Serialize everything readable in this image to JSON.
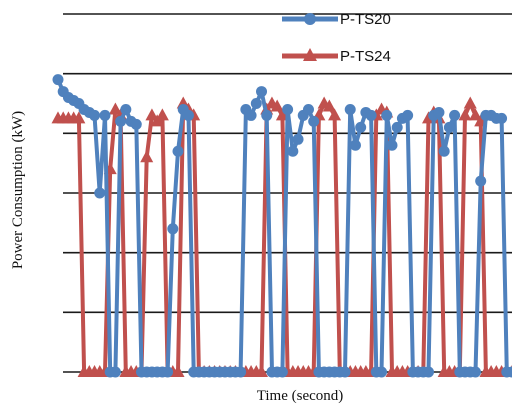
{
  "chart_data": {
    "type": "line",
    "title": "",
    "xlabel": "Time   (second)",
    "ylabel": "Power Consumption  (kW)",
    "ylim": [
      0,
      6
    ],
    "yticks": [
      0,
      1,
      2,
      3,
      4,
      5,
      6
    ],
    "xlim": [
      0,
      87
    ],
    "grid": "horizontal",
    "legend_position": "top-right",
    "series": [
      {
        "name": "P-TS20",
        "color": "#4f81bd",
        "marker": "circle",
        "x": [
          0,
          1,
          2,
          3,
          4,
          5,
          6,
          7,
          8,
          9,
          10,
          11,
          12,
          13,
          14,
          15,
          16,
          17,
          18,
          19,
          20,
          21,
          22,
          23,
          24,
          25,
          26,
          27,
          28,
          29,
          30,
          31,
          32,
          33,
          34,
          35,
          36,
          37,
          38,
          39,
          40,
          41,
          42,
          43,
          44,
          45,
          46,
          47,
          48,
          49,
          50,
          51,
          52,
          53,
          54,
          55,
          56,
          57,
          58,
          59,
          60,
          61,
          62,
          63,
          64,
          65,
          66,
          67,
          68,
          69,
          70,
          71,
          72,
          73,
          74,
          75,
          76,
          77,
          78,
          79,
          80,
          81,
          82,
          83,
          84,
          85,
          86,
          87
        ],
        "values": [
          4.9,
          4.7,
          4.6,
          4.55,
          4.5,
          4.4,
          4.35,
          4.3,
          3.0,
          4.3,
          0,
          0,
          4.2,
          4.4,
          4.2,
          4.15,
          0,
          0,
          0,
          0,
          0,
          0,
          2.4,
          3.7,
          4.4,
          4.3,
          0,
          0,
          0,
          0,
          0,
          0,
          0,
          0,
          0,
          0,
          4.4,
          4.3,
          4.5,
          4.7,
          4.3,
          0,
          0,
          0,
          4.4,
          3.7,
          3.9,
          4.3,
          4.4,
          4.2,
          0,
          0,
          0,
          0,
          0,
          0,
          4.4,
          3.8,
          4.1,
          4.35,
          4.3,
          0,
          0,
          4.3,
          3.8,
          4.1,
          4.25,
          4.3,
          0,
          0,
          0,
          0,
          4.3,
          4.35,
          3.7,
          4.1,
          4.3,
          0,
          0,
          0,
          0,
          3.2,
          4.3,
          4.3,
          4.25,
          4.25,
          0,
          0
        ]
      },
      {
        "name": "P-TS24",
        "color": "#c0504d",
        "marker": "triangle",
        "x": [
          0,
          1,
          2,
          3,
          4,
          5,
          6,
          7,
          8,
          9,
          10,
          11,
          12,
          13,
          14,
          15,
          16,
          17,
          18,
          19,
          20,
          21,
          22,
          23,
          24,
          25,
          26,
          27,
          28,
          29,
          30,
          31,
          32,
          33,
          34,
          35,
          36,
          37,
          38,
          39,
          40,
          41,
          42,
          43,
          44,
          45,
          46,
          47,
          48,
          49,
          50,
          51,
          52,
          53,
          54,
          55,
          56,
          57,
          58,
          59,
          60,
          61,
          62,
          63,
          64,
          65,
          66,
          67,
          68,
          69,
          70,
          71,
          72,
          73,
          74,
          75,
          76,
          77,
          78,
          79,
          80,
          81,
          82,
          83,
          84,
          85,
          86,
          87
        ],
        "values": [
          4.25,
          4.25,
          4.25,
          4.25,
          4.25,
          0,
          0,
          0,
          0,
          0,
          3.4,
          4.4,
          4.3,
          0,
          0,
          0,
          0,
          3.6,
          4.3,
          4.2,
          4.3,
          0,
          0,
          0,
          4.5,
          4.4,
          4.3,
          0,
          0,
          0,
          0,
          0,
          0,
          0,
          0,
          0,
          0,
          0,
          0,
          0,
          4.4,
          4.5,
          4.45,
          4.3,
          0,
          0,
          0,
          0,
          0,
          0,
          4.3,
          4.5,
          4.45,
          4.3,
          0,
          0,
          0,
          0,
          0,
          0,
          0,
          4.3,
          4.4,
          4.35,
          0,
          0,
          0,
          0,
          0,
          0,
          0,
          4.25,
          4.35,
          4.25,
          0,
          0,
          0,
          0,
          4.3,
          4.5,
          4.3,
          4.2,
          0,
          0,
          0,
          0,
          0,
          0
        ]
      }
    ]
  }
}
